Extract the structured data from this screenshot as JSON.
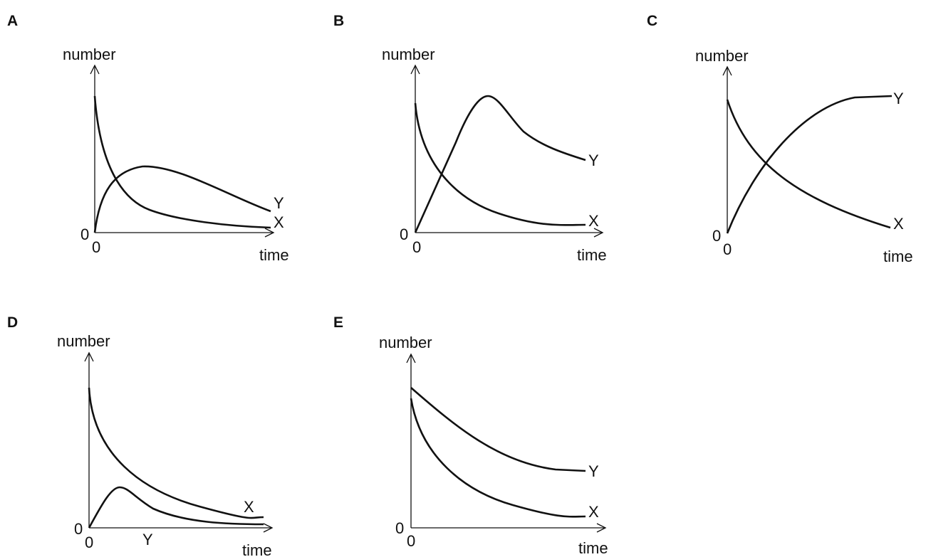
{
  "panels": [
    {
      "label": "A",
      "y_axis": "number",
      "x_axis": "time",
      "origin_y": "0",
      "origin_x": "0",
      "curves": [
        {
          "label": "Y"
        },
        {
          "label": "X"
        }
      ]
    },
    {
      "label": "B",
      "y_axis": "number",
      "x_axis": "time",
      "origin_y": "0",
      "origin_x": "0",
      "curves": [
        {
          "label": "Y"
        },
        {
          "label": "X"
        }
      ]
    },
    {
      "label": "C",
      "y_axis": "number",
      "x_axis": "time",
      "origin_y": "0",
      "origin_x": "0",
      "curves": [
        {
          "label": "Y"
        },
        {
          "label": "X"
        }
      ]
    },
    {
      "label": "D",
      "y_axis": "number",
      "x_axis": "time",
      "origin_y": "0",
      "origin_x": "0",
      "curves": [
        {
          "label": "X"
        },
        {
          "label": "Y"
        }
      ]
    },
    {
      "label": "E",
      "y_axis": "number",
      "x_axis": "time",
      "origin_y": "0",
      "origin_x": "0",
      "curves": [
        {
          "label": "Y"
        },
        {
          "label": "X"
        }
      ]
    }
  ]
}
